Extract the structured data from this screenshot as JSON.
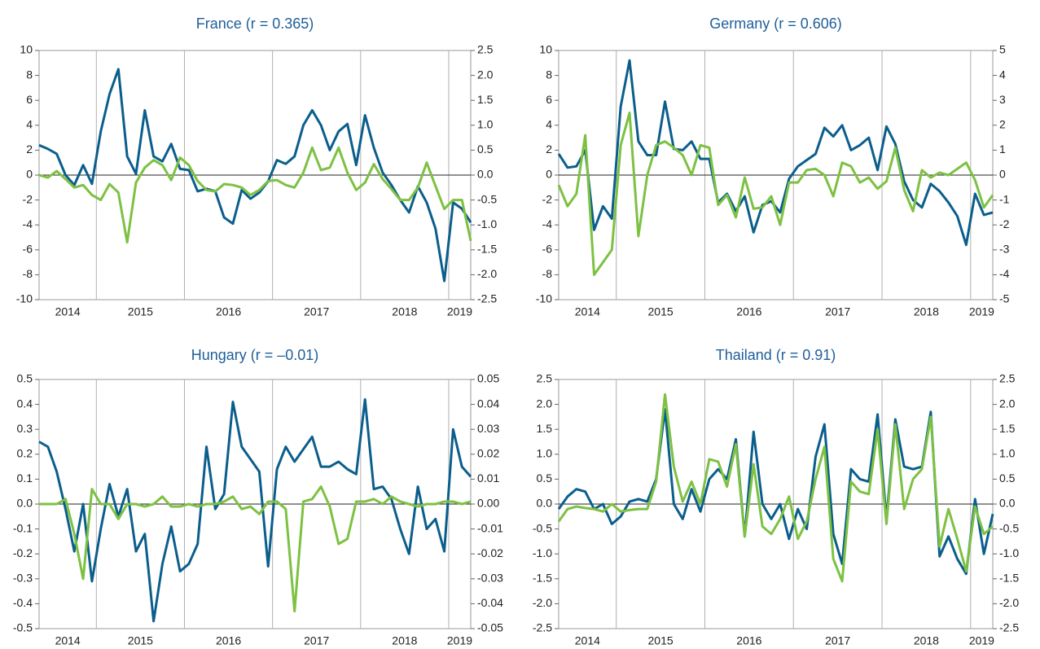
{
  "chart_data": [
    {
      "type": "line",
      "title": "France (r = 0.365)",
      "grid": "x",
      "x": [
        2014.35,
        2014.45,
        2014.55,
        2014.65,
        2014.75,
        2014.85,
        2014.95,
        2015.05,
        2015.15,
        2015.25,
        2015.35,
        2015.45,
        2015.55,
        2015.65,
        2015.75,
        2015.85,
        2015.95,
        2016.05,
        2016.15,
        2016.25,
        2016.35,
        2016.45,
        2016.55,
        2016.65,
        2016.75,
        2016.85,
        2016.95,
        2017.05,
        2017.15,
        2017.25,
        2017.35,
        2017.45,
        2017.55,
        2017.65,
        2017.75,
        2017.85,
        2017.95,
        2018.05,
        2018.15,
        2018.25,
        2018.35,
        2018.45,
        2018.55,
        2018.65,
        2018.75,
        2018.85,
        2018.95,
        2019.05,
        2019.15,
        2019.25
      ],
      "xlim": [
        2014.35,
        2019.25
      ],
      "xticks": [
        {
          "value": 2014,
          "label": "2014"
        },
        {
          "value": 2015,
          "label": "2015"
        },
        {
          "value": 2016,
          "label": "2016"
        },
        {
          "value": 2017,
          "label": "2017"
        },
        {
          "value": 2018,
          "label": "2018"
        },
        {
          "value": 2019,
          "label": "2019"
        }
      ],
      "ylim": [
        -10,
        10
      ],
      "yticks": [
        10,
        8,
        6,
        4,
        2,
        0,
        -2,
        -4,
        -6,
        -8,
        -10
      ],
      "y2lim": [
        -2.5,
        2.5
      ],
      "y2ticks": [
        2.5,
        {
          "value": 2,
          "label": "2.0"
        },
        1.5,
        {
          "value": 1,
          "label": "1.0"
        },
        0.5,
        {
          "value": 0,
          "label": "0.0"
        },
        -0.5,
        {
          "value": -1,
          "label": "-1.0"
        },
        -1.5,
        {
          "value": -2,
          "label": "-2.0"
        },
        -2.5
      ],
      "series": [
        {
          "color": "#0b5e8c",
          "values": [
            2.4,
            2.1,
            1.7,
            0.0,
            -0.8,
            0.8,
            -0.7,
            3.5,
            6.5,
            8.5,
            1.5,
            0.1,
            5.2,
            1.5,
            1.1,
            2.5,
            0.5,
            0.4,
            -1.3,
            -1.1,
            -1.3,
            -3.4,
            -3.9,
            -1.2,
            -1.9,
            -1.4,
            -0.5,
            1.2,
            0.9,
            1.5,
            4.0,
            5.2,
            4.0,
            2.0,
            3.5,
            4.1,
            0.8,
            4.8,
            2.2,
            0.2,
            -0.8,
            -2.0,
            -3.0,
            -0.9,
            -2.2,
            -4.3,
            -8.5,
            -2.2,
            -2.7,
            -3.8
          ]
        },
        {
          "color": "#7dc142",
          "axis": "y2",
          "values": [
            0.0,
            -0.05,
            0.08,
            -0.08,
            -0.25,
            -0.2,
            -0.4,
            -0.5,
            -0.18,
            -0.35,
            -1.35,
            -0.15,
            0.15,
            0.3,
            0.2,
            -0.1,
            0.35,
            0.2,
            -0.12,
            -0.3,
            -0.33,
            -0.18,
            -0.2,
            -0.25,
            -0.4,
            -0.3,
            -0.12,
            -0.1,
            -0.2,
            -0.25,
            0.05,
            0.55,
            0.1,
            0.15,
            0.55,
            0.05,
            -0.3,
            -0.15,
            0.22,
            -0.08,
            -0.28,
            -0.5,
            -0.5,
            -0.25,
            0.25,
            -0.22,
            -0.68,
            -0.5,
            -0.5,
            -1.32
          ]
        }
      ]
    },
    {
      "type": "line",
      "title": "Germany (r = 0.606)",
      "grid": "x",
      "x": [
        2014.35,
        2014.45,
        2014.55,
        2014.65,
        2014.75,
        2014.85,
        2014.95,
        2015.05,
        2015.15,
        2015.25,
        2015.35,
        2015.45,
        2015.55,
        2015.65,
        2015.75,
        2015.85,
        2015.95,
        2016.05,
        2016.15,
        2016.25,
        2016.35,
        2016.45,
        2016.55,
        2016.65,
        2016.75,
        2016.85,
        2016.95,
        2017.05,
        2017.15,
        2017.25,
        2017.35,
        2017.45,
        2017.55,
        2017.65,
        2017.75,
        2017.85,
        2017.95,
        2018.05,
        2018.15,
        2018.25,
        2018.35,
        2018.45,
        2018.55,
        2018.65,
        2018.75,
        2018.85,
        2018.95,
        2019.05,
        2019.15,
        2019.25
      ],
      "xlim": [
        2014.35,
        2019.25
      ],
      "xticks": [
        {
          "value": 2014,
          "label": "2014"
        },
        {
          "value": 2015,
          "label": "2015"
        },
        {
          "value": 2016,
          "label": "2016"
        },
        {
          "value": 2017,
          "label": "2017"
        },
        {
          "value": 2018,
          "label": "2018"
        },
        {
          "value": 2019,
          "label": "2019"
        }
      ],
      "ylim": [
        -10,
        10
      ],
      "yticks": [
        10,
        8,
        6,
        4,
        2,
        0,
        -2,
        -4,
        -6,
        -8,
        -10
      ],
      "y2lim": [
        -5,
        5
      ],
      "y2ticks": [
        5,
        4,
        3,
        2,
        1,
        0,
        -1,
        -2,
        -3,
        -4,
        -5
      ],
      "series": [
        {
          "color": "#0b5e8c",
          "values": [
            1.7,
            0.6,
            0.7,
            2.0,
            -4.4,
            -2.5,
            -3.5,
            5.5,
            9.2,
            2.7,
            1.6,
            1.6,
            5.9,
            2.1,
            2.0,
            2.7,
            1.3,
            1.3,
            -2.2,
            -1.5,
            -2.9,
            -1.7,
            -4.6,
            -2.4,
            -2.1,
            -3.0,
            -0.3,
            0.7,
            1.2,
            1.7,
            3.8,
            3.1,
            4.0,
            2.0,
            2.4,
            3.0,
            0.4,
            3.9,
            2.5,
            -0.5,
            -2.0,
            -2.6,
            -0.7,
            -1.3,
            -2.2,
            -3.3,
            -5.6,
            -1.5,
            -3.2,
            -3.0
          ]
        },
        {
          "color": "#7dc142",
          "axis": "y2",
          "values": [
            -0.4,
            -1.25,
            -0.75,
            1.6,
            -4.0,
            -3.5,
            -3.0,
            1.2,
            2.5,
            -2.45,
            0.0,
            1.2,
            1.35,
            1.1,
            0.8,
            0.0,
            1.2,
            1.1,
            -1.2,
            -0.8,
            -1.7,
            -0.1,
            -1.35,
            -1.3,
            -0.85,
            -2.0,
            -0.3,
            -0.3,
            0.2,
            0.25,
            0.0,
            -0.85,
            0.5,
            0.35,
            -0.3,
            -0.1,
            -0.55,
            -0.25,
            1.1,
            -0.6,
            -1.45,
            0.2,
            -0.1,
            0.1,
            0.0,
            0.25,
            0.5,
            -0.2,
            -1.3,
            -0.8
          ]
        }
      ]
    },
    {
      "type": "line",
      "title": "Hungary (r = –0.01)",
      "grid": "x",
      "x": [
        2014.35,
        2014.45,
        2014.55,
        2014.65,
        2014.75,
        2014.85,
        2014.95,
        2015.05,
        2015.15,
        2015.25,
        2015.35,
        2015.45,
        2015.55,
        2015.65,
        2015.75,
        2015.85,
        2015.95,
        2016.05,
        2016.15,
        2016.25,
        2016.35,
        2016.45,
        2016.55,
        2016.65,
        2016.75,
        2016.85,
        2016.95,
        2017.05,
        2017.15,
        2017.25,
        2017.35,
        2017.45,
        2017.55,
        2017.65,
        2017.75,
        2017.85,
        2017.95,
        2018.05,
        2018.15,
        2018.25,
        2018.35,
        2018.45,
        2018.55,
        2018.65,
        2018.75,
        2018.85,
        2018.95,
        2019.05,
        2019.15,
        2019.25
      ],
      "xlim": [
        2014.35,
        2019.25
      ],
      "xticks": [
        {
          "value": 2014,
          "label": "2014"
        },
        {
          "value": 2015,
          "label": "2015"
        },
        {
          "value": 2016,
          "label": "2016"
        },
        {
          "value": 2017,
          "label": "2017"
        },
        {
          "value": 2018,
          "label": "2018"
        },
        {
          "value": 2019,
          "label": "2019"
        }
      ],
      "ylim": [
        -0.5,
        0.5
      ],
      "yticks": [
        0.5,
        0.4,
        0.3,
        0.2,
        0.1,
        {
          "value": 0,
          "label": "0.0"
        },
        -0.1,
        -0.2,
        -0.3,
        -0.4,
        -0.5
      ],
      "y2lim": [
        -0.05,
        0.05
      ],
      "y2ticks": [
        0.05,
        0.04,
        0.03,
        0.02,
        0.01,
        {
          "value": 0,
          "label": "0.00"
        },
        -0.01,
        -0.02,
        -0.03,
        -0.04,
        -0.05
      ],
      "series": [
        {
          "color": "#0b5e8c",
          "values": [
            0.25,
            0.23,
            0.13,
            -0.02,
            -0.19,
            0.0,
            -0.31,
            -0.1,
            0.08,
            -0.05,
            0.06,
            -0.19,
            -0.12,
            -0.47,
            -0.24,
            -0.09,
            -0.27,
            -0.24,
            -0.16,
            0.23,
            -0.02,
            0.04,
            0.41,
            0.23,
            0.18,
            0.13,
            -0.25,
            0.14,
            0.23,
            0.17,
            0.22,
            0.27,
            0.15,
            0.15,
            0.17,
            0.14,
            0.12,
            0.42,
            0.06,
            0.07,
            0.02,
            -0.1,
            -0.2,
            0.07,
            -0.1,
            -0.06,
            -0.19,
            0.3,
            0.15,
            0.11
          ]
        },
        {
          "color": "#7dc142",
          "axis": "y2",
          "values": [
            0.0,
            0.0,
            0.0,
            0.002,
            -0.012,
            -0.03,
            0.006,
            0.0,
            0.0,
            -0.006,
            0.0,
            0.0,
            -0.001,
            0.0,
            0.003,
            -0.001,
            -0.001,
            0.0,
            -0.001,
            0.0,
            0.0,
            0.001,
            0.003,
            -0.002,
            -0.001,
            -0.004,
            0.001,
            0.001,
            -0.002,
            -0.043,
            0.001,
            0.002,
            0.007,
            -0.001,
            -0.016,
            -0.014,
            0.001,
            0.001,
            0.002,
            0.0,
            0.003,
            0.001,
            0.0,
            -0.001,
            0.0,
            0.0,
            0.001,
            0.001,
            0.0,
            0.001
          ]
        }
      ]
    },
    {
      "type": "line",
      "title": "Thailand (r = 0.91)",
      "grid": "x",
      "x": [
        2014.35,
        2014.45,
        2014.55,
        2014.65,
        2014.75,
        2014.85,
        2014.95,
        2015.05,
        2015.15,
        2015.25,
        2015.35,
        2015.45,
        2015.55,
        2015.65,
        2015.75,
        2015.85,
        2015.95,
        2016.05,
        2016.15,
        2016.25,
        2016.35,
        2016.45,
        2016.55,
        2016.65,
        2016.75,
        2016.85,
        2016.95,
        2017.05,
        2017.15,
        2017.25,
        2017.35,
        2017.45,
        2017.55,
        2017.65,
        2017.75,
        2017.85,
        2017.95,
        2018.05,
        2018.15,
        2018.25,
        2018.35,
        2018.45,
        2018.55,
        2018.65,
        2018.75,
        2018.85,
        2018.95,
        2019.05,
        2019.15,
        2019.25
      ],
      "xlim": [
        2014.35,
        2019.25
      ],
      "xticks": [
        {
          "value": 2014,
          "label": "2014"
        },
        {
          "value": 2015,
          "label": "2015"
        },
        {
          "value": 2016,
          "label": "2016"
        },
        {
          "value": 2017,
          "label": "2017"
        },
        {
          "value": 2018,
          "label": "2018"
        },
        {
          "value": 2019,
          "label": "2019"
        }
      ],
      "ylim": [
        -2.5,
        2.5
      ],
      "yticks": [
        2.5,
        {
          "value": 2,
          "label": "2.0"
        },
        1.5,
        {
          "value": 1,
          "label": "1.0"
        },
        0.5,
        {
          "value": 0,
          "label": "0.0"
        },
        -0.5,
        {
          "value": -1,
          "label": "-1.0"
        },
        -1.5,
        {
          "value": -2,
          "label": "-2.0"
        },
        -2.5
      ],
      "y2lim": [
        -2.5,
        2.5
      ],
      "y2ticks": [
        2.5,
        {
          "value": 2,
          "label": "2.0"
        },
        1.5,
        {
          "value": 1,
          "label": "1.0"
        },
        0.5,
        {
          "value": 0,
          "label": "0.0"
        },
        -0.5,
        {
          "value": -1,
          "label": "-1.0"
        },
        -1.5,
        {
          "value": -2,
          "label": "-2.0"
        },
        -2.5
      ],
      "series": [
        {
          "color": "#0b5e8c",
          "values": [
            -0.1,
            0.15,
            0.3,
            0.25,
            -0.1,
            0.0,
            -0.4,
            -0.25,
            0.05,
            0.1,
            0.05,
            0.5,
            1.9,
            0.0,
            -0.3,
            0.3,
            -0.15,
            0.5,
            0.7,
            0.5,
            1.3,
            -0.65,
            1.45,
            0.0,
            -0.3,
            0.0,
            -0.7,
            -0.1,
            -0.5,
            0.95,
            1.6,
            -0.6,
            -1.2,
            0.7,
            0.5,
            0.45,
            1.8,
            -0.3,
            1.7,
            0.75,
            0.7,
            0.75,
            1.85,
            -1.05,
            -0.65,
            -1.1,
            -1.4,
            0.1,
            -1.0,
            -0.2
          ]
        },
        {
          "color": "#7dc142",
          "axis": "y2",
          "values": [
            -0.35,
            -0.1,
            -0.05,
            -0.08,
            -0.1,
            -0.15,
            0.0,
            -0.15,
            -0.12,
            -0.1,
            -0.1,
            0.45,
            2.2,
            0.75,
            0.05,
            0.45,
            0.0,
            0.9,
            0.85,
            0.35,
            1.2,
            -0.65,
            0.8,
            -0.45,
            -0.6,
            -0.3,
            0.15,
            -0.7,
            -0.35,
            0.5,
            1.15,
            -1.1,
            -1.55,
            0.45,
            0.25,
            0.2,
            1.5,
            -0.4,
            1.6,
            -0.1,
            0.5,
            0.7,
            1.75,
            -0.85,
            -0.1,
            -0.7,
            -1.35,
            -0.05,
            -0.6,
            -0.45
          ]
        }
      ]
    }
  ]
}
